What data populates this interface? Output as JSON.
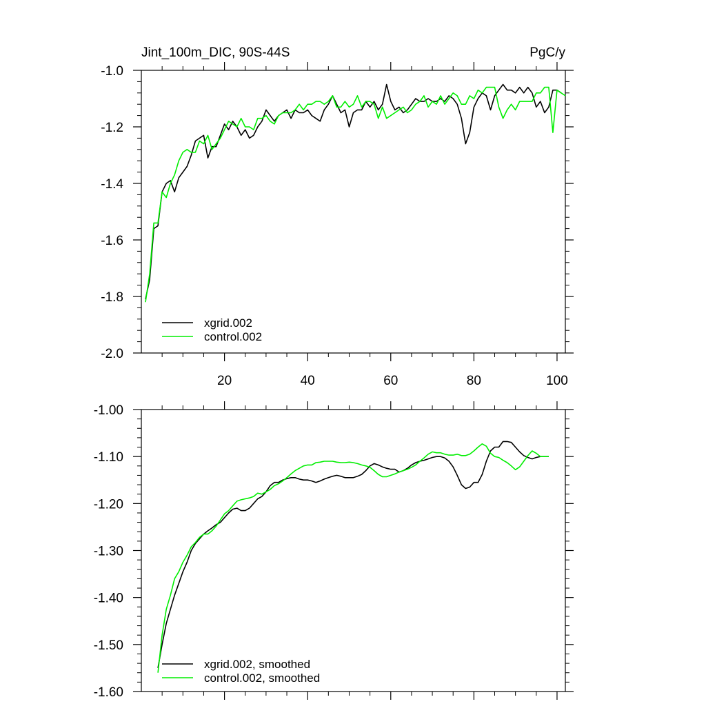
{
  "chart_data": [
    {
      "type": "line",
      "left_title": "Jint_100m_DIC, 90S-44S",
      "right_title": "PgC/y",
      "xlim": [
        0,
        102
      ],
      "ylim": [
        -2.0,
        -1.0
      ],
      "x_ticks": [
        20,
        40,
        60,
        80,
        100
      ],
      "x_tick_labels": [
        "20",
        "40",
        "60",
        "80",
        "100"
      ],
      "y_ticks": [
        -2.0,
        -1.8,
        -1.6,
        -1.4,
        -1.2,
        -1.0
      ],
      "y_tick_labels": [
        "-2.0",
        "-1.8",
        "-1.6",
        "-1.4",
        "-1.2",
        "-1.0"
      ],
      "legend_position": "bottom-left",
      "series": [
        {
          "name": "xgrid.002",
          "color": "#000000",
          "x": [
            1,
            2,
            3,
            4,
            5,
            6,
            7,
            8,
            9,
            10,
            11,
            12,
            13,
            14,
            15,
            16,
            17,
            18,
            19,
            20,
            21,
            22,
            23,
            24,
            25,
            26,
            27,
            28,
            29,
            30,
            31,
            32,
            33,
            34,
            35,
            36,
            37,
            38,
            39,
            40,
            41,
            42,
            43,
            44,
            45,
            46,
            47,
            48,
            49,
            50,
            51,
            52,
            53,
            54,
            55,
            56,
            57,
            58,
            59,
            60,
            61,
            62,
            63,
            64,
            65,
            66,
            67,
            68,
            69,
            70,
            71,
            72,
            73,
            74,
            75,
            76,
            77,
            78,
            79,
            80,
            81,
            82,
            83,
            84,
            85,
            86,
            87,
            88,
            89,
            90,
            91,
            92,
            93,
            94,
            95,
            96,
            97,
            98,
            99,
            100,
            101
          ],
          "values": [
            -1.81,
            -1.74,
            -1.56,
            -1.55,
            -1.43,
            -1.4,
            -1.39,
            -1.43,
            -1.38,
            -1.36,
            -1.34,
            -1.3,
            -1.25,
            -1.24,
            -1.23,
            -1.31,
            -1.27,
            -1.27,
            -1.23,
            -1.19,
            -1.21,
            -1.18,
            -1.2,
            -1.23,
            -1.21,
            -1.24,
            -1.23,
            -1.2,
            -1.18,
            -1.14,
            -1.16,
            -1.18,
            -1.16,
            -1.15,
            -1.14,
            -1.17,
            -1.14,
            -1.15,
            -1.15,
            -1.14,
            -1.16,
            -1.17,
            -1.18,
            -1.14,
            -1.12,
            -1.09,
            -1.12,
            -1.15,
            -1.14,
            -1.2,
            -1.15,
            -1.14,
            -1.14,
            -1.11,
            -1.13,
            -1.11,
            -1.14,
            -1.12,
            -1.05,
            -1.11,
            -1.14,
            -1.13,
            -1.15,
            -1.14,
            -1.12,
            -1.1,
            -1.11,
            -1.11,
            -1.1,
            -1.11,
            -1.11,
            -1.1,
            -1.11,
            -1.09,
            -1.1,
            -1.12,
            -1.17,
            -1.26,
            -1.22,
            -1.13,
            -1.1,
            -1.08,
            -1.09,
            -1.14,
            -1.09,
            -1.07,
            -1.05,
            -1.07,
            -1.07,
            -1.08,
            -1.06,
            -1.08,
            -1.06,
            -1.08,
            -1.13,
            -1.11,
            -1.15,
            -1.13,
            -1.07,
            -1.07,
            -1.08
          ]
        },
        {
          "name": "control.002",
          "color": "#00ee00",
          "x": [
            1,
            2,
            3,
            4,
            5,
            6,
            7,
            8,
            9,
            10,
            11,
            12,
            13,
            14,
            15,
            16,
            17,
            18,
            19,
            20,
            21,
            22,
            23,
            24,
            25,
            26,
            27,
            28,
            29,
            30,
            31,
            32,
            33,
            34,
            35,
            36,
            37,
            38,
            39,
            40,
            41,
            42,
            43,
            44,
            45,
            46,
            47,
            48,
            49,
            50,
            51,
            52,
            53,
            54,
            55,
            56,
            57,
            58,
            59,
            60,
            61,
            62,
            63,
            64,
            65,
            66,
            67,
            68,
            69,
            70,
            71,
            72,
            73,
            74,
            75,
            76,
            77,
            78,
            79,
            80,
            81,
            82,
            83,
            84,
            85,
            86,
            87,
            88,
            89,
            90,
            91,
            92,
            93,
            94,
            95,
            96,
            97,
            98,
            99,
            100,
            101,
            102
          ],
          "values": [
            -1.82,
            -1.72,
            -1.54,
            -1.54,
            -1.43,
            -1.45,
            -1.4,
            -1.37,
            -1.32,
            -1.29,
            -1.28,
            -1.29,
            -1.29,
            -1.25,
            -1.26,
            -1.23,
            -1.28,
            -1.26,
            -1.24,
            -1.21,
            -1.18,
            -1.19,
            -1.2,
            -1.17,
            -1.2,
            -1.2,
            -1.21,
            -1.17,
            -1.17,
            -1.16,
            -1.18,
            -1.19,
            -1.16,
            -1.15,
            -1.15,
            -1.15,
            -1.14,
            -1.12,
            -1.14,
            -1.12,
            -1.12,
            -1.11,
            -1.11,
            -1.12,
            -1.11,
            -1.09,
            -1.13,
            -1.13,
            -1.11,
            -1.13,
            -1.12,
            -1.09,
            -1.13,
            -1.11,
            -1.11,
            -1.12,
            -1.17,
            -1.13,
            -1.17,
            -1.16,
            -1.15,
            -1.14,
            -1.13,
            -1.15,
            -1.14,
            -1.12,
            -1.11,
            -1.09,
            -1.13,
            -1.11,
            -1.12,
            -1.09,
            -1.12,
            -1.1,
            -1.08,
            -1.09,
            -1.12,
            -1.12,
            -1.09,
            -1.1,
            -1.07,
            -1.08,
            -1.06,
            -1.06,
            -1.06,
            -1.13,
            -1.17,
            -1.14,
            -1.12,
            -1.14,
            -1.11,
            -1.11,
            -1.11,
            -1.11,
            -1.08,
            -1.08,
            -1.06,
            -1.06,
            -1.22,
            -1.07,
            -1.08,
            -1.09
          ]
        }
      ]
    },
    {
      "type": "line",
      "xlim": [
        0,
        102
      ],
      "ylim": [
        -1.6,
        -1.0
      ],
      "x_ticks": [
        20,
        40,
        60,
        80,
        100
      ],
      "y_ticks": [
        -1.6,
        -1.5,
        -1.4,
        -1.3,
        -1.2,
        -1.1,
        -1.0
      ],
      "y_tick_labels": [
        "-1.60",
        "-1.50",
        "-1.40",
        "-1.30",
        "-1.20",
        "-1.10",
        "-1.00"
      ],
      "legend_position": "bottom-left",
      "series": [
        {
          "name": "xgrid.002, smoothed",
          "color": "#000000",
          "x": [
            4,
            5,
            6,
            7,
            8,
            9,
            10,
            11,
            12,
            13,
            14,
            15,
            16,
            17,
            18,
            19,
            20,
            21,
            22,
            23,
            24,
            25,
            26,
            27,
            28,
            29,
            30,
            31,
            32,
            33,
            34,
            35,
            36,
            37,
            38,
            39,
            40,
            41,
            42,
            43,
            44,
            45,
            46,
            47,
            48,
            49,
            50,
            51,
            52,
            53,
            54,
            55,
            56,
            57,
            58,
            59,
            60,
            61,
            62,
            63,
            64,
            65,
            66,
            67,
            68,
            69,
            70,
            71,
            72,
            73,
            74,
            75,
            76,
            77,
            78,
            79,
            80,
            81,
            82,
            83,
            84,
            85,
            86,
            87,
            88,
            89,
            90,
            91,
            92,
            93,
            94,
            95,
            96,
            97,
            98
          ],
          "values": [
            -1.55,
            -1.5,
            -1.455,
            -1.425,
            -1.395,
            -1.37,
            -1.345,
            -1.325,
            -1.3,
            -1.285,
            -1.275,
            -1.265,
            -1.258,
            -1.252,
            -1.245,
            -1.24,
            -1.23,
            -1.22,
            -1.212,
            -1.21,
            -1.215,
            -1.215,
            -1.21,
            -1.2,
            -1.19,
            -1.185,
            -1.175,
            -1.162,
            -1.155,
            -1.155,
            -1.15,
            -1.147,
            -1.145,
            -1.145,
            -1.148,
            -1.15,
            -1.15,
            -1.152,
            -1.155,
            -1.152,
            -1.148,
            -1.145,
            -1.142,
            -1.14,
            -1.142,
            -1.145,
            -1.145,
            -1.145,
            -1.142,
            -1.138,
            -1.13,
            -1.12,
            -1.115,
            -1.118,
            -1.122,
            -1.125,
            -1.127,
            -1.127,
            -1.133,
            -1.13,
            -1.125,
            -1.118,
            -1.113,
            -1.11,
            -1.108,
            -1.105,
            -1.102,
            -1.1,
            -1.1,
            -1.103,
            -1.11,
            -1.122,
            -1.14,
            -1.16,
            -1.168,
            -1.165,
            -1.155,
            -1.155,
            -1.138,
            -1.11,
            -1.088,
            -1.08,
            -1.08,
            -1.068,
            -1.068,
            -1.07,
            -1.08,
            -1.09,
            -1.098,
            -1.102,
            -1.105,
            -1.102,
            -1.1,
            -1.1,
            -1.1
          ]
        },
        {
          "name": "control.002, smoothed",
          "color": "#00ee00",
          "x": [
            4,
            5,
            6,
            7,
            8,
            9,
            10,
            11,
            12,
            13,
            14,
            15,
            16,
            17,
            18,
            19,
            20,
            21,
            22,
            23,
            24,
            25,
            26,
            27,
            28,
            29,
            30,
            31,
            32,
            33,
            34,
            35,
            36,
            37,
            38,
            39,
            40,
            41,
            42,
            43,
            44,
            45,
            46,
            47,
            48,
            49,
            50,
            51,
            52,
            53,
            54,
            55,
            56,
            57,
            58,
            59,
            60,
            61,
            62,
            63,
            64,
            65,
            66,
            67,
            68,
            69,
            70,
            71,
            72,
            73,
            74,
            75,
            76,
            77,
            78,
            79,
            80,
            81,
            82,
            83,
            84,
            85,
            86,
            87,
            88,
            89,
            90,
            91,
            92,
            93,
            94,
            95,
            96,
            97,
            98
          ],
          "values": [
            -1.56,
            -1.48,
            -1.425,
            -1.395,
            -1.36,
            -1.345,
            -1.325,
            -1.31,
            -1.292,
            -1.283,
            -1.272,
            -1.265,
            -1.265,
            -1.258,
            -1.248,
            -1.235,
            -1.222,
            -1.215,
            -1.205,
            -1.195,
            -1.192,
            -1.19,
            -1.188,
            -1.185,
            -1.178,
            -1.18,
            -1.175,
            -1.17,
            -1.162,
            -1.158,
            -1.152,
            -1.145,
            -1.137,
            -1.13,
            -1.125,
            -1.12,
            -1.118,
            -1.118,
            -1.113,
            -1.112,
            -1.11,
            -1.11,
            -1.11,
            -1.112,
            -1.113,
            -1.113,
            -1.112,
            -1.113,
            -1.115,
            -1.118,
            -1.12,
            -1.123,
            -1.13,
            -1.138,
            -1.143,
            -1.143,
            -1.14,
            -1.137,
            -1.133,
            -1.13,
            -1.127,
            -1.123,
            -1.118,
            -1.11,
            -1.103,
            -1.095,
            -1.09,
            -1.092,
            -1.092,
            -1.095,
            -1.097,
            -1.097,
            -1.095,
            -1.098,
            -1.098,
            -1.095,
            -1.088,
            -1.08,
            -1.073,
            -1.078,
            -1.093,
            -1.1,
            -1.102,
            -1.108,
            -1.113,
            -1.12,
            -1.128,
            -1.122,
            -1.11,
            -1.098,
            -1.088,
            -1.093,
            -1.1,
            -1.1,
            -1.1
          ]
        }
      ]
    }
  ]
}
